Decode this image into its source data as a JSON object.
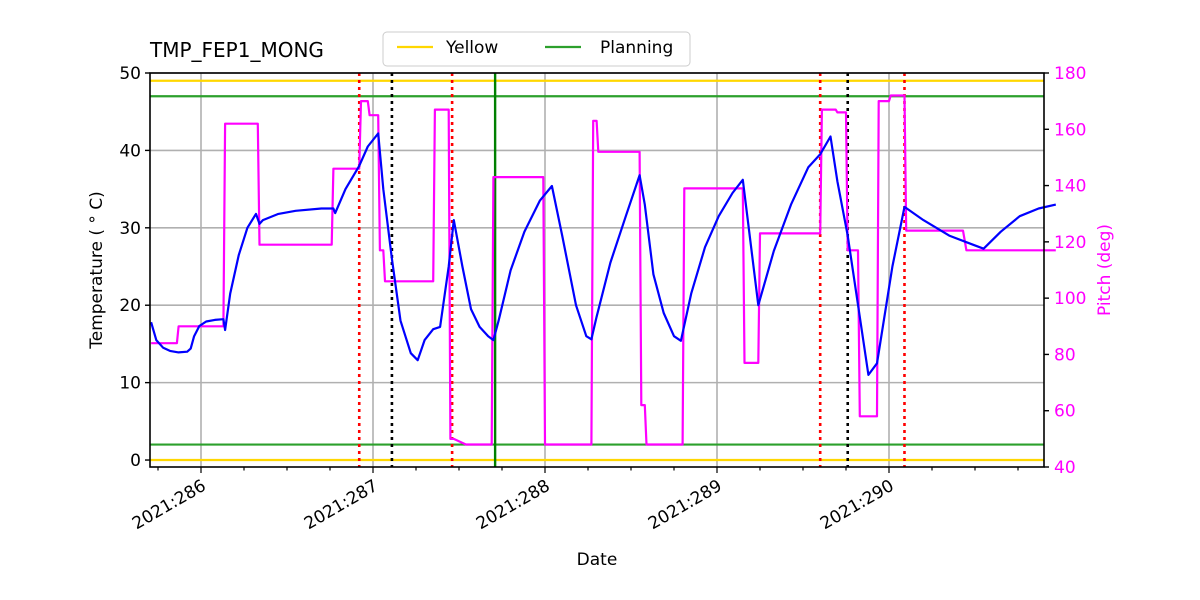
{
  "chart_data": {
    "type": "line",
    "title": "TMP_FEP1_MONG",
    "xlabel": "Date",
    "ylabel": "Temperature ($^\\circ$C)",
    "ylabel_display": "Temperature ( ° C)",
    "y2label": "Pitch (deg)",
    "xlim": [
      285.71,
      290.97
    ],
    "ylim": [
      -0.9,
      50
    ],
    "y2lim": [
      40,
      180
    ],
    "x_ticks": [
      286,
      287,
      288,
      289,
      290
    ],
    "x_tick_labels": [
      "2021:286",
      "2021:287",
      "2021:288",
      "2021:289",
      "2021:290"
    ],
    "y_ticks": [
      0,
      10,
      20,
      30,
      40,
      50
    ],
    "y2_ticks": [
      40,
      60,
      80,
      100,
      120,
      140,
      160,
      180
    ],
    "grid": true,
    "legend": {
      "position": "top-center",
      "entries": [
        {
          "label": "Yellow",
          "color": "#ffd700"
        },
        {
          "label": "Planning",
          "color": "#2ca02c"
        }
      ]
    },
    "limit_lines": [
      {
        "name": "Yellow high",
        "y": 49,
        "color": "#ffd700"
      },
      {
        "name": "Planning high",
        "y": 47,
        "color": "#2ca02c"
      },
      {
        "name": "Planning low",
        "y": 2,
        "color": "#2ca02c"
      },
      {
        "name": "Yellow low",
        "y": 0,
        "color": "#ffd700"
      }
    ],
    "vertical_lines": [
      {
        "x": 286.92,
        "style": "dotted",
        "color": "#ff0000"
      },
      {
        "x": 287.11,
        "style": "dotted",
        "color": "#000000"
      },
      {
        "x": 287.46,
        "style": "dotted",
        "color": "#ff0000"
      },
      {
        "x": 287.71,
        "style": "solid",
        "color": "#008000"
      },
      {
        "x": 289.6,
        "style": "dotted",
        "color": "#ff0000"
      },
      {
        "x": 289.76,
        "style": "dotted",
        "color": "#000000"
      },
      {
        "x": 290.09,
        "style": "dotted",
        "color": "#ff0000"
      }
    ],
    "series": [
      {
        "name": "Temperature",
        "axis": "left",
        "color": "#0000ff",
        "x": [
          285.71,
          285.74,
          285.78,
          285.82,
          285.87,
          285.92,
          285.94,
          285.96,
          285.99,
          286.03,
          286.08,
          286.13,
          286.14,
          286.17,
          286.22,
          286.27,
          286.32,
          286.34,
          286.36,
          286.45,
          286.55,
          286.7,
          286.77,
          286.78,
          286.84,
          286.92,
          286.97,
          287.03,
          287.06,
          287.11,
          287.16,
          287.22,
          287.26,
          287.3,
          287.35,
          287.39,
          287.44,
          287.47,
          287.52,
          287.57,
          287.62,
          287.67,
          287.7,
          287.73,
          287.8,
          287.88,
          287.97,
          288.04,
          288.1,
          288.18,
          288.24,
          288.27,
          288.3,
          288.38,
          288.47,
          288.55,
          288.58,
          288.63,
          288.69,
          288.75,
          288.79,
          288.85,
          288.93,
          289.01,
          289.09,
          289.15,
          289.24,
          289.33,
          289.43,
          289.53,
          289.6,
          289.66,
          289.7,
          289.76,
          289.84,
          289.88,
          289.93,
          290.02,
          290.09,
          290.2,
          290.35,
          290.49,
          290.55,
          290.65,
          290.76,
          290.87,
          290.97
        ],
        "values": [
          17.8,
          15.5,
          14.5,
          14.1,
          13.9,
          14.0,
          14.4,
          16.0,
          17.3,
          17.9,
          18.1,
          18.2,
          16.8,
          21.5,
          26.5,
          30.0,
          31.8,
          30.5,
          31.0,
          31.8,
          32.2,
          32.5,
          32.5,
          31.9,
          35.0,
          38.0,
          40.5,
          42.2,
          35.0,
          26.0,
          18.0,
          13.8,
          12.9,
          15.5,
          16.9,
          17.2,
          25.0,
          31.0,
          25.0,
          19.5,
          17.2,
          16.0,
          15.5,
          18.0,
          24.5,
          29.5,
          33.5,
          35.4,
          29.0,
          20.0,
          16.0,
          15.6,
          18.5,
          25.5,
          31.5,
          36.8,
          33.0,
          24.0,
          19.0,
          16.0,
          15.4,
          21.5,
          27.5,
          31.5,
          34.5,
          36.2,
          20.0,
          27.0,
          33.0,
          37.8,
          39.5,
          41.8,
          36.0,
          29.0,
          17.0,
          11.0,
          12.5,
          25.0,
          32.7,
          31.0,
          29.0,
          27.8,
          27.3,
          29.5,
          31.5,
          32.5,
          33.0
        ]
      },
      {
        "name": "Pitch",
        "axis": "right",
        "color": "#ff00ff",
        "x": [
          285.71,
          285.86,
          285.87,
          286.13,
          286.14,
          286.33,
          286.34,
          286.76,
          286.77,
          286.92,
          286.93,
          286.97,
          286.98,
          287.03,
          287.04,
          287.06,
          287.07,
          287.1,
          287.11,
          287.35,
          287.36,
          287.44,
          287.45,
          287.47,
          287.54,
          287.69,
          287.7,
          287.99,
          288.0,
          288.27,
          288.28,
          288.3,
          288.31,
          288.55,
          288.56,
          288.58,
          288.59,
          288.63,
          288.64,
          288.8,
          288.81,
          289.15,
          289.16,
          289.24,
          289.25,
          289.6,
          289.61,
          289.69,
          289.7,
          289.75,
          289.76,
          289.82,
          289.83,
          289.93,
          289.94,
          290.0,
          290.01,
          290.09,
          290.1,
          290.43,
          290.45,
          290.97
        ],
        "values": [
          84,
          84,
          90,
          90,
          162,
          162,
          119,
          119,
          146,
          146,
          170,
          170,
          165,
          165,
          117,
          117,
          106,
          106,
          106,
          106,
          167,
          167,
          50,
          50,
          48,
          48,
          143,
          143,
          48,
          48,
          163,
          163,
          152,
          152,
          62,
          62,
          48,
          48,
          48,
          48,
          139,
          139,
          77,
          77,
          123,
          123,
          167,
          167,
          166,
          166,
          117,
          117,
          58,
          58,
          170,
          170,
          172,
          172,
          124,
          124,
          117,
          117
        ]
      }
    ]
  }
}
